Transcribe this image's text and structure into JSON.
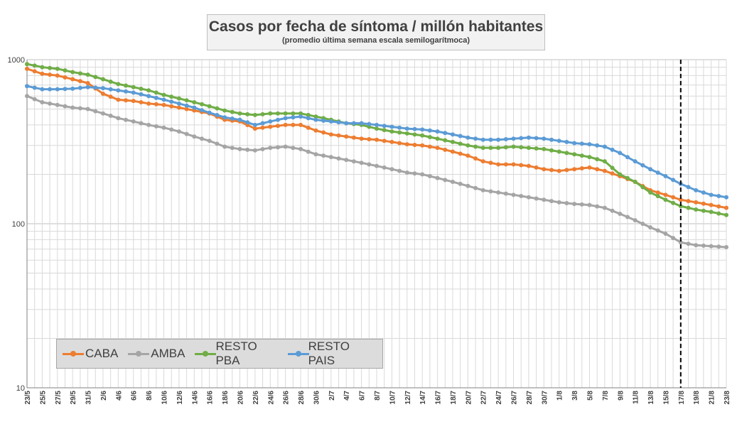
{
  "title": "Casos por fecha de síntoma / millón habitantes",
  "subtitle": "(promedio última semana escala semilogarítmoca)",
  "chart_data": {
    "type": "line",
    "title": "Casos por fecha de síntoma / millón habitantes",
    "subtitle": "(promedio última semana escala semilogarítmoca)",
    "y_scale": "log",
    "ylim": [
      10,
      1000
    ],
    "y_ticks": [
      "10",
      "100",
      "1000"
    ],
    "grid": true,
    "legend_position": "bottom-left",
    "x_tick_labels": [
      "23/5",
      "25/5",
      "27/5",
      "29/5",
      "31/5",
      "2/6",
      "4/6",
      "6/6",
      "8/6",
      "10/6",
      "12/6",
      "14/6",
      "16/6",
      "18/6",
      "20/6",
      "22/6",
      "24/6",
      "26/6",
      "28/6",
      "30/6",
      "2/7",
      "4/7",
      "6/7",
      "8/7",
      "10/7",
      "12/7",
      "14/7",
      "16/7",
      "18/7",
      "20/7",
      "22/7",
      "24/7",
      "26/7",
      "28/7",
      "30/7",
      "1/8",
      "3/8",
      "5/8",
      "7/8",
      "9/8",
      "11/8",
      "13/8",
      "15/8",
      "17/8",
      "19/8",
      "21/8",
      "23/8"
    ],
    "reference_line": {
      "x": "17/8",
      "style": "dashed"
    },
    "series": [
      {
        "name": "CABA",
        "color": "#ed7d31",
        "anchors": [
          [
            "23/5",
            880
          ],
          [
            "25/5",
            820
          ],
          [
            "27/5",
            800
          ],
          [
            "29/5",
            760
          ],
          [
            "31/5",
            720
          ],
          [
            "2/6",
            620
          ],
          [
            "4/6",
            570
          ],
          [
            "6/6",
            560
          ],
          [
            "8/6",
            540
          ],
          [
            "10/6",
            530
          ],
          [
            "12/6",
            510
          ],
          [
            "14/6",
            490
          ],
          [
            "16/6",
            470
          ],
          [
            "18/6",
            430
          ],
          [
            "20/6",
            420
          ],
          [
            "22/6",
            380
          ],
          [
            "24/6",
            390
          ],
          [
            "26/6",
            400
          ],
          [
            "28/6",
            400
          ],
          [
            "30/6",
            370
          ],
          [
            "2/7",
            350
          ],
          [
            "4/7",
            340
          ],
          [
            "6/7",
            330
          ],
          [
            "8/7",
            325
          ],
          [
            "10/7",
            315
          ],
          [
            "12/7",
            305
          ],
          [
            "14/7",
            300
          ],
          [
            "16/7",
            290
          ],
          [
            "18/7",
            275
          ],
          [
            "20/7",
            260
          ],
          [
            "22/7",
            240
          ],
          [
            "24/7",
            230
          ],
          [
            "26/7",
            230
          ],
          [
            "28/7",
            225
          ],
          [
            "30/7",
            215
          ],
          [
            "1/8",
            210
          ],
          [
            "3/8",
            215
          ],
          [
            "5/8",
            220
          ],
          [
            "7/8",
            210
          ],
          [
            "9/8",
            195
          ],
          [
            "11/8",
            180
          ],
          [
            "13/8",
            160
          ],
          [
            "15/8",
            150
          ],
          [
            "17/8",
            140
          ],
          [
            "19/8",
            135
          ],
          [
            "21/8",
            130
          ],
          [
            "23/8",
            125
          ]
        ]
      },
      {
        "name": "AMBA",
        "color": "#a5a5a5",
        "anchors": [
          [
            "23/5",
            600
          ],
          [
            "25/5",
            550
          ],
          [
            "27/5",
            530
          ],
          [
            "29/5",
            510
          ],
          [
            "31/5",
            500
          ],
          [
            "2/6",
            470
          ],
          [
            "4/6",
            440
          ],
          [
            "6/6",
            420
          ],
          [
            "8/6",
            400
          ],
          [
            "10/6",
            385
          ],
          [
            "12/6",
            365
          ],
          [
            "14/6",
            340
          ],
          [
            "16/6",
            320
          ],
          [
            "18/6",
            295
          ],
          [
            "20/6",
            285
          ],
          [
            "22/6",
            280
          ],
          [
            "24/6",
            290
          ],
          [
            "26/6",
            295
          ],
          [
            "28/6",
            285
          ],
          [
            "30/6",
            265
          ],
          [
            "2/7",
            255
          ],
          [
            "4/7",
            245
          ],
          [
            "6/7",
            235
          ],
          [
            "8/7",
            225
          ],
          [
            "10/7",
            215
          ],
          [
            "12/7",
            205
          ],
          [
            "14/7",
            200
          ],
          [
            "16/7",
            190
          ],
          [
            "18/7",
            180
          ],
          [
            "20/7",
            170
          ],
          [
            "22/7",
            160
          ],
          [
            "24/7",
            155
          ],
          [
            "26/7",
            150
          ],
          [
            "28/7",
            145
          ],
          [
            "30/7",
            140
          ],
          [
            "1/8",
            135
          ],
          [
            "3/8",
            132
          ],
          [
            "5/8",
            130
          ],
          [
            "7/8",
            125
          ],
          [
            "9/8",
            115
          ],
          [
            "11/8",
            105
          ],
          [
            "13/8",
            95
          ],
          [
            "15/8",
            87
          ],
          [
            "17/8",
            77
          ],
          [
            "19/8",
            74
          ],
          [
            "21/8",
            73
          ],
          [
            "23/8",
            72
          ]
        ]
      },
      {
        "name": "RESTO PBA",
        "color": "#70ad47",
        "anchors": [
          [
            "23/5",
            940
          ],
          [
            "25/5",
            900
          ],
          [
            "27/5",
            880
          ],
          [
            "29/5",
            840
          ],
          [
            "31/5",
            810
          ],
          [
            "2/6",
            760
          ],
          [
            "4/6",
            710
          ],
          [
            "6/6",
            680
          ],
          [
            "8/6",
            650
          ],
          [
            "10/6",
            610
          ],
          [
            "12/6",
            580
          ],
          [
            "14/6",
            550
          ],
          [
            "16/6",
            520
          ],
          [
            "18/6",
            490
          ],
          [
            "20/6",
            470
          ],
          [
            "22/6",
            460
          ],
          [
            "24/6",
            470
          ],
          [
            "26/6",
            470
          ],
          [
            "28/6",
            470
          ],
          [
            "30/6",
            450
          ],
          [
            "2/7",
            430
          ],
          [
            "4/7",
            410
          ],
          [
            "6/7",
            400
          ],
          [
            "8/7",
            380
          ],
          [
            "10/7",
            365
          ],
          [
            "12/7",
            355
          ],
          [
            "14/7",
            345
          ],
          [
            "16/7",
            330
          ],
          [
            "18/7",
            315
          ],
          [
            "20/7",
            300
          ],
          [
            "22/7",
            290
          ],
          [
            "24/7",
            290
          ],
          [
            "26/7",
            295
          ],
          [
            "28/7",
            290
          ],
          [
            "30/7",
            285
          ],
          [
            "1/8",
            275
          ],
          [
            "3/8",
            265
          ],
          [
            "5/8",
            255
          ],
          [
            "7/8",
            240
          ],
          [
            "9/8",
            200
          ],
          [
            "11/8",
            180
          ],
          [
            "13/8",
            155
          ],
          [
            "15/8",
            140
          ],
          [
            "17/8",
            128
          ],
          [
            "19/8",
            122
          ],
          [
            "21/8",
            118
          ],
          [
            "23/8",
            113
          ]
        ]
      },
      {
        "name": "RESTO PAIS",
        "color": "#5b9bd5",
        "anchors": [
          [
            "23/5",
            690
          ],
          [
            "25/5",
            660
          ],
          [
            "27/5",
            660
          ],
          [
            "29/5",
            665
          ],
          [
            "31/5",
            680
          ],
          [
            "2/6",
            670
          ],
          [
            "4/6",
            650
          ],
          [
            "6/6",
            630
          ],
          [
            "8/6",
            600
          ],
          [
            "10/6",
            570
          ],
          [
            "12/6",
            540
          ],
          [
            "14/6",
            510
          ],
          [
            "16/6",
            475
          ],
          [
            "18/6",
            445
          ],
          [
            "20/6",
            430
          ],
          [
            "22/6",
            400
          ],
          [
            "24/6",
            420
          ],
          [
            "26/6",
            440
          ],
          [
            "28/6",
            450
          ],
          [
            "30/6",
            430
          ],
          [
            "2/7",
            420
          ],
          [
            "4/7",
            410
          ],
          [
            "6/7",
            410
          ],
          [
            "8/7",
            400
          ],
          [
            "10/7",
            390
          ],
          [
            "12/7",
            380
          ],
          [
            "14/7",
            375
          ],
          [
            "16/7",
            365
          ],
          [
            "18/7",
            350
          ],
          [
            "20/7",
            335
          ],
          [
            "22/7",
            325
          ],
          [
            "24/7",
            325
          ],
          [
            "26/7",
            330
          ],
          [
            "28/7",
            335
          ],
          [
            "30/7",
            330
          ],
          [
            "1/8",
            320
          ],
          [
            "3/8",
            310
          ],
          [
            "5/8",
            305
          ],
          [
            "7/8",
            295
          ],
          [
            "9/8",
            270
          ],
          [
            "11/8",
            240
          ],
          [
            "13/8",
            215
          ],
          [
            "15/8",
            195
          ],
          [
            "17/8",
            175
          ],
          [
            "19/8",
            160
          ],
          [
            "21/8",
            150
          ],
          [
            "23/8",
            145
          ]
        ]
      }
    ]
  }
}
